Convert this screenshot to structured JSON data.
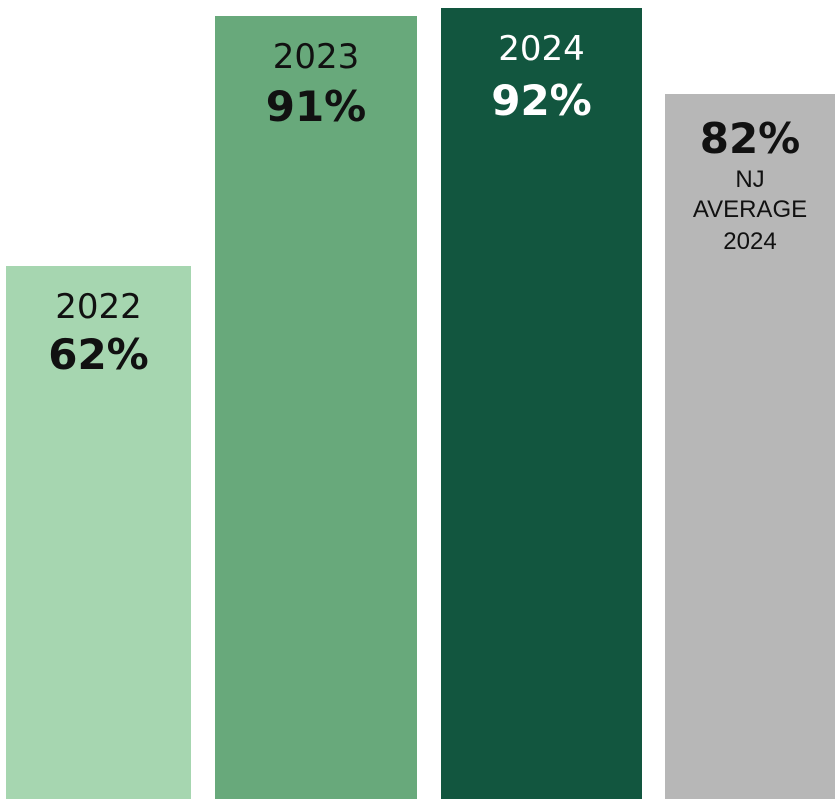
{
  "chart_data": {
    "type": "bar",
    "categories": [
      "2022",
      "2023",
      "2024",
      "NJ AVERAGE 2024"
    ],
    "values": [
      62,
      91,
      92,
      82
    ],
    "unit": "%",
    "ylim": [
      0,
      100
    ],
    "grid": false,
    "legend": "none",
    "bars": [
      {
        "year_label": "2022",
        "value_label": "62%",
        "value": 62,
        "color": "#a6d6b0",
        "text_color": "#111111"
      },
      {
        "year_label": "2023",
        "value_label": "91%",
        "value": 91,
        "color": "#68a97b",
        "text_color": "#111111"
      },
      {
        "year_label": "2024",
        "value_label": "92%",
        "value": 92,
        "color": "#12563f",
        "text_color": "#ffffff"
      },
      {
        "value_label": "82%",
        "line1": "NJ",
        "line2": "AVERAGE",
        "line3": "2024",
        "value": 82,
        "color": "#b7b7b7",
        "text_color": "#111111"
      }
    ]
  }
}
